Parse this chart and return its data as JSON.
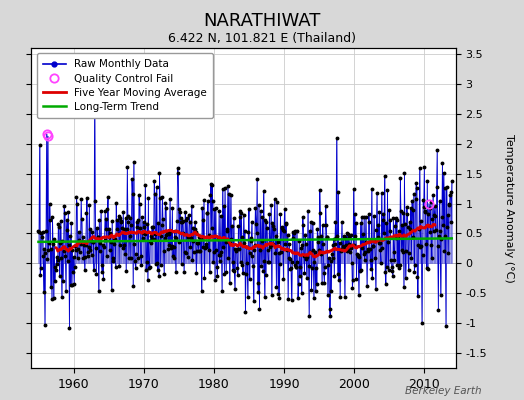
{
  "title": "NARATHIWAT",
  "subtitle": "6.422 N, 101.821 E (Thailand)",
  "ylabel": "Temperature Anomaly (°C)",
  "credit": "Berkeley Earth",
  "year_start": 1955,
  "year_end": 2013,
  "ylim": [
    -1.75,
    3.6
  ],
  "yticks": [
    -1.5,
    -1.0,
    -0.5,
    0.0,
    0.5,
    1.0,
    1.5,
    2.0,
    2.5,
    3.0,
    3.5
  ],
  "xticks": [
    1960,
    1970,
    1980,
    1990,
    2000,
    2010
  ],
  "fig_background": "#d8d8d8",
  "plot_background": "#ffffff",
  "line_color": "#0000cc",
  "stem_color": "#6666dd",
  "moving_avg_color": "#dd0000",
  "trend_color": "#00aa00",
  "qc_fail_color": "#ff44ff",
  "seed": 137
}
